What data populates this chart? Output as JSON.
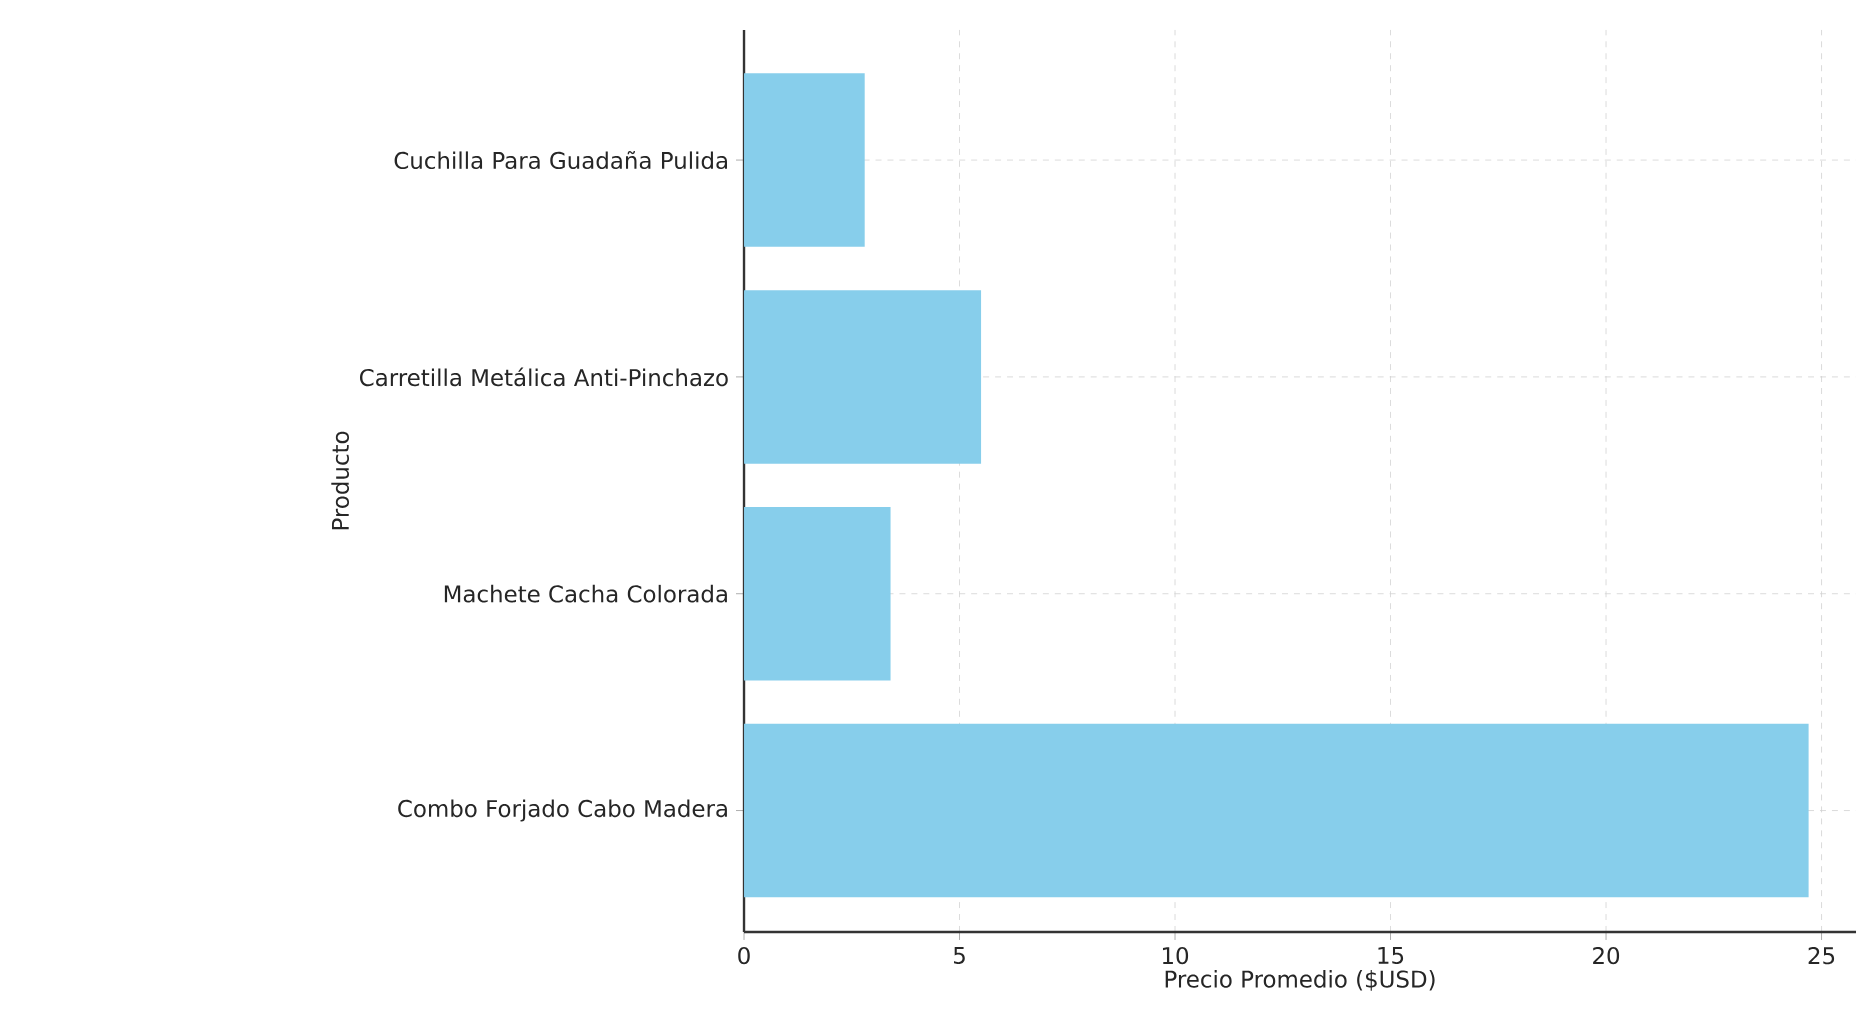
{
  "chart_data": {
    "type": "bar",
    "orientation": "horizontal",
    "xlabel": "Precio Promedio ($USD)",
    "ylabel": "Producto",
    "categories": [
      "Cuchilla Para Guadaña Pulida",
      "Carretilla Metálica Anti-Pinchazo",
      "Machete Cacha Colorada",
      "Combo Forjado Cabo Madera"
    ],
    "values": [
      2.8,
      5.5,
      3.4,
      24.7
    ],
    "color": "#87ceeb",
    "xlim": [
      0,
      25.8
    ],
    "xticks": [
      0,
      5,
      10,
      15,
      20,
      25
    ],
    "grid": true
  }
}
